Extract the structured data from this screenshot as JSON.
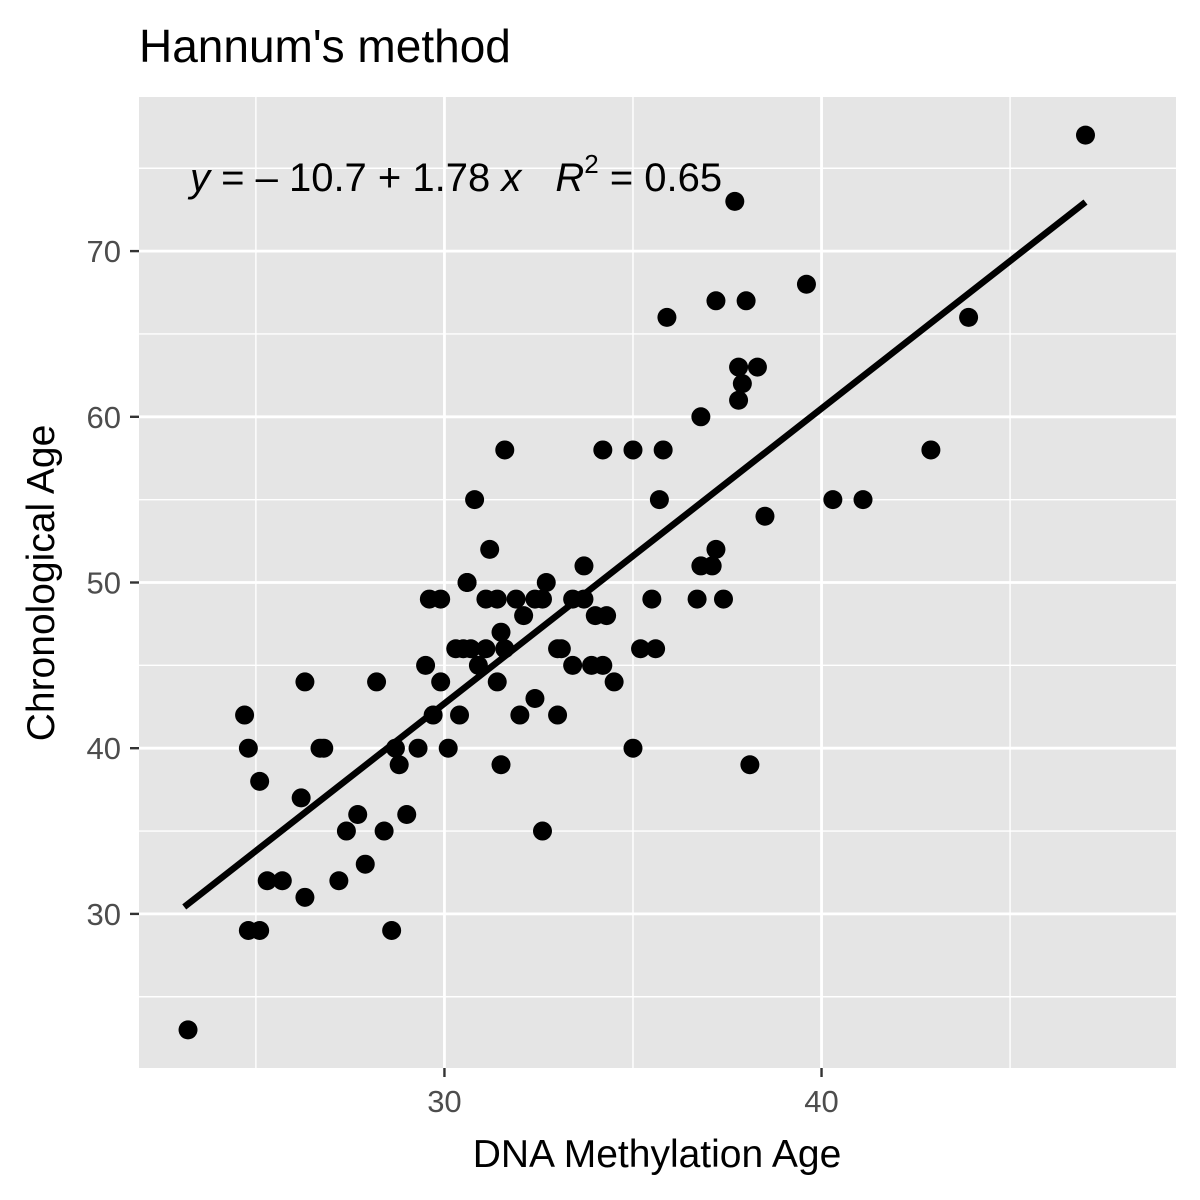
{
  "chart_data": {
    "type": "scatter",
    "title": "Hannum's method",
    "xlabel": "DNA Methylation Age",
    "ylabel": "Chronological Age",
    "xlim": [
      21.9,
      49.4
    ],
    "ylim": [
      20.7,
      79.3
    ],
    "x_ticks": [
      30,
      40
    ],
    "x_tick_labels": [
      "30",
      "40"
    ],
    "x_minor_ticks": [
      25,
      35,
      45
    ],
    "y_ticks": [
      30,
      40,
      50,
      60,
      70
    ],
    "y_tick_labels": [
      "30",
      "40",
      "50",
      "60",
      "70"
    ],
    "y_minor_ticks": [
      25,
      35,
      45,
      55,
      65,
      75
    ],
    "grid": true,
    "background": "#e5e5e5",
    "grid_color": "#ffffff",
    "point_color": "#000000",
    "line_color": "#000000",
    "regression": {
      "intercept": -10.7,
      "slope": 1.78,
      "x_range": [
        23.1,
        47.0
      ],
      "equation": {
        "y_var": "y",
        "eq_body": " = – 10.7 + 1.78 ",
        "x_var": "x",
        "r_var": "R",
        "r_exp": "2",
        "r_rest": " = 0.65"
      }
    },
    "points": [
      {
        "x": 23.2,
        "y": 23
      },
      {
        "x": 24.7,
        "y": 42
      },
      {
        "x": 24.8,
        "y": 40
      },
      {
        "x": 24.8,
        "y": 29
      },
      {
        "x": 25.1,
        "y": 38
      },
      {
        "x": 25.1,
        "y": 29
      },
      {
        "x": 25.3,
        "y": 32
      },
      {
        "x": 25.7,
        "y": 32
      },
      {
        "x": 26.2,
        "y": 37
      },
      {
        "x": 26.3,
        "y": 44
      },
      {
        "x": 26.3,
        "y": 31
      },
      {
        "x": 26.7,
        "y": 40
      },
      {
        "x": 26.8,
        "y": 40
      },
      {
        "x": 27.2,
        "y": 32
      },
      {
        "x": 27.4,
        "y": 35
      },
      {
        "x": 27.7,
        "y": 36
      },
      {
        "x": 27.9,
        "y": 33
      },
      {
        "x": 28.2,
        "y": 44
      },
      {
        "x": 28.4,
        "y": 35
      },
      {
        "x": 28.6,
        "y": 29
      },
      {
        "x": 28.7,
        "y": 40
      },
      {
        "x": 28.8,
        "y": 39
      },
      {
        "x": 29.0,
        "y": 36
      },
      {
        "x": 29.3,
        "y": 40
      },
      {
        "x": 29.5,
        "y": 45
      },
      {
        "x": 29.6,
        "y": 49
      },
      {
        "x": 29.7,
        "y": 42
      },
      {
        "x": 29.9,
        "y": 44
      },
      {
        "x": 29.9,
        "y": 49
      },
      {
        "x": 30.1,
        "y": 40
      },
      {
        "x": 30.3,
        "y": 46
      },
      {
        "x": 30.4,
        "y": 42
      },
      {
        "x": 30.5,
        "y": 46
      },
      {
        "x": 30.6,
        "y": 50
      },
      {
        "x": 30.6,
        "y": 50
      },
      {
        "x": 30.7,
        "y": 46
      },
      {
        "x": 30.8,
        "y": 55
      },
      {
        "x": 30.9,
        "y": 45
      },
      {
        "x": 31.1,
        "y": 46
      },
      {
        "x": 31.1,
        "y": 49
      },
      {
        "x": 31.2,
        "y": 52
      },
      {
        "x": 31.4,
        "y": 49
      },
      {
        "x": 31.4,
        "y": 44
      },
      {
        "x": 31.5,
        "y": 47
      },
      {
        "x": 31.5,
        "y": 39
      },
      {
        "x": 31.6,
        "y": 46
      },
      {
        "x": 31.6,
        "y": 58
      },
      {
        "x": 31.9,
        "y": 49
      },
      {
        "x": 32.0,
        "y": 42
      },
      {
        "x": 32.1,
        "y": 48
      },
      {
        "x": 32.4,
        "y": 43
      },
      {
        "x": 32.4,
        "y": 49
      },
      {
        "x": 32.6,
        "y": 35
      },
      {
        "x": 32.6,
        "y": 49
      },
      {
        "x": 32.7,
        "y": 50
      },
      {
        "x": 33.0,
        "y": 46
      },
      {
        "x": 33.0,
        "y": 42
      },
      {
        "x": 33.1,
        "y": 46
      },
      {
        "x": 33.4,
        "y": 45
      },
      {
        "x": 33.4,
        "y": 49
      },
      {
        "x": 33.7,
        "y": 49
      },
      {
        "x": 33.7,
        "y": 51
      },
      {
        "x": 33.9,
        "y": 45
      },
      {
        "x": 34.0,
        "y": 48
      },
      {
        "x": 34.2,
        "y": 45
      },
      {
        "x": 34.2,
        "y": 58
      },
      {
        "x": 34.3,
        "y": 48
      },
      {
        "x": 34.5,
        "y": 44
      },
      {
        "x": 35.0,
        "y": 40
      },
      {
        "x": 35.0,
        "y": 58
      },
      {
        "x": 35.2,
        "y": 46
      },
      {
        "x": 35.5,
        "y": 49
      },
      {
        "x": 35.6,
        "y": 46
      },
      {
        "x": 35.7,
        "y": 55
      },
      {
        "x": 35.8,
        "y": 58
      },
      {
        "x": 35.9,
        "y": 66
      },
      {
        "x": 36.7,
        "y": 49
      },
      {
        "x": 36.8,
        "y": 51
      },
      {
        "x": 36.8,
        "y": 60
      },
      {
        "x": 37.1,
        "y": 51
      },
      {
        "x": 37.2,
        "y": 52
      },
      {
        "x": 37.2,
        "y": 67
      },
      {
        "x": 37.4,
        "y": 49
      },
      {
        "x": 37.7,
        "y": 73
      },
      {
        "x": 37.8,
        "y": 61
      },
      {
        "x": 37.8,
        "y": 63
      },
      {
        "x": 37.9,
        "y": 62
      },
      {
        "x": 38.0,
        "y": 67
      },
      {
        "x": 38.1,
        "y": 39
      },
      {
        "x": 38.3,
        "y": 63
      },
      {
        "x": 38.5,
        "y": 54
      },
      {
        "x": 39.6,
        "y": 68
      },
      {
        "x": 40.3,
        "y": 55
      },
      {
        "x": 41.1,
        "y": 55
      },
      {
        "x": 42.9,
        "y": 58
      },
      {
        "x": 43.9,
        "y": 66
      },
      {
        "x": 47.0,
        "y": 77
      }
    ]
  }
}
